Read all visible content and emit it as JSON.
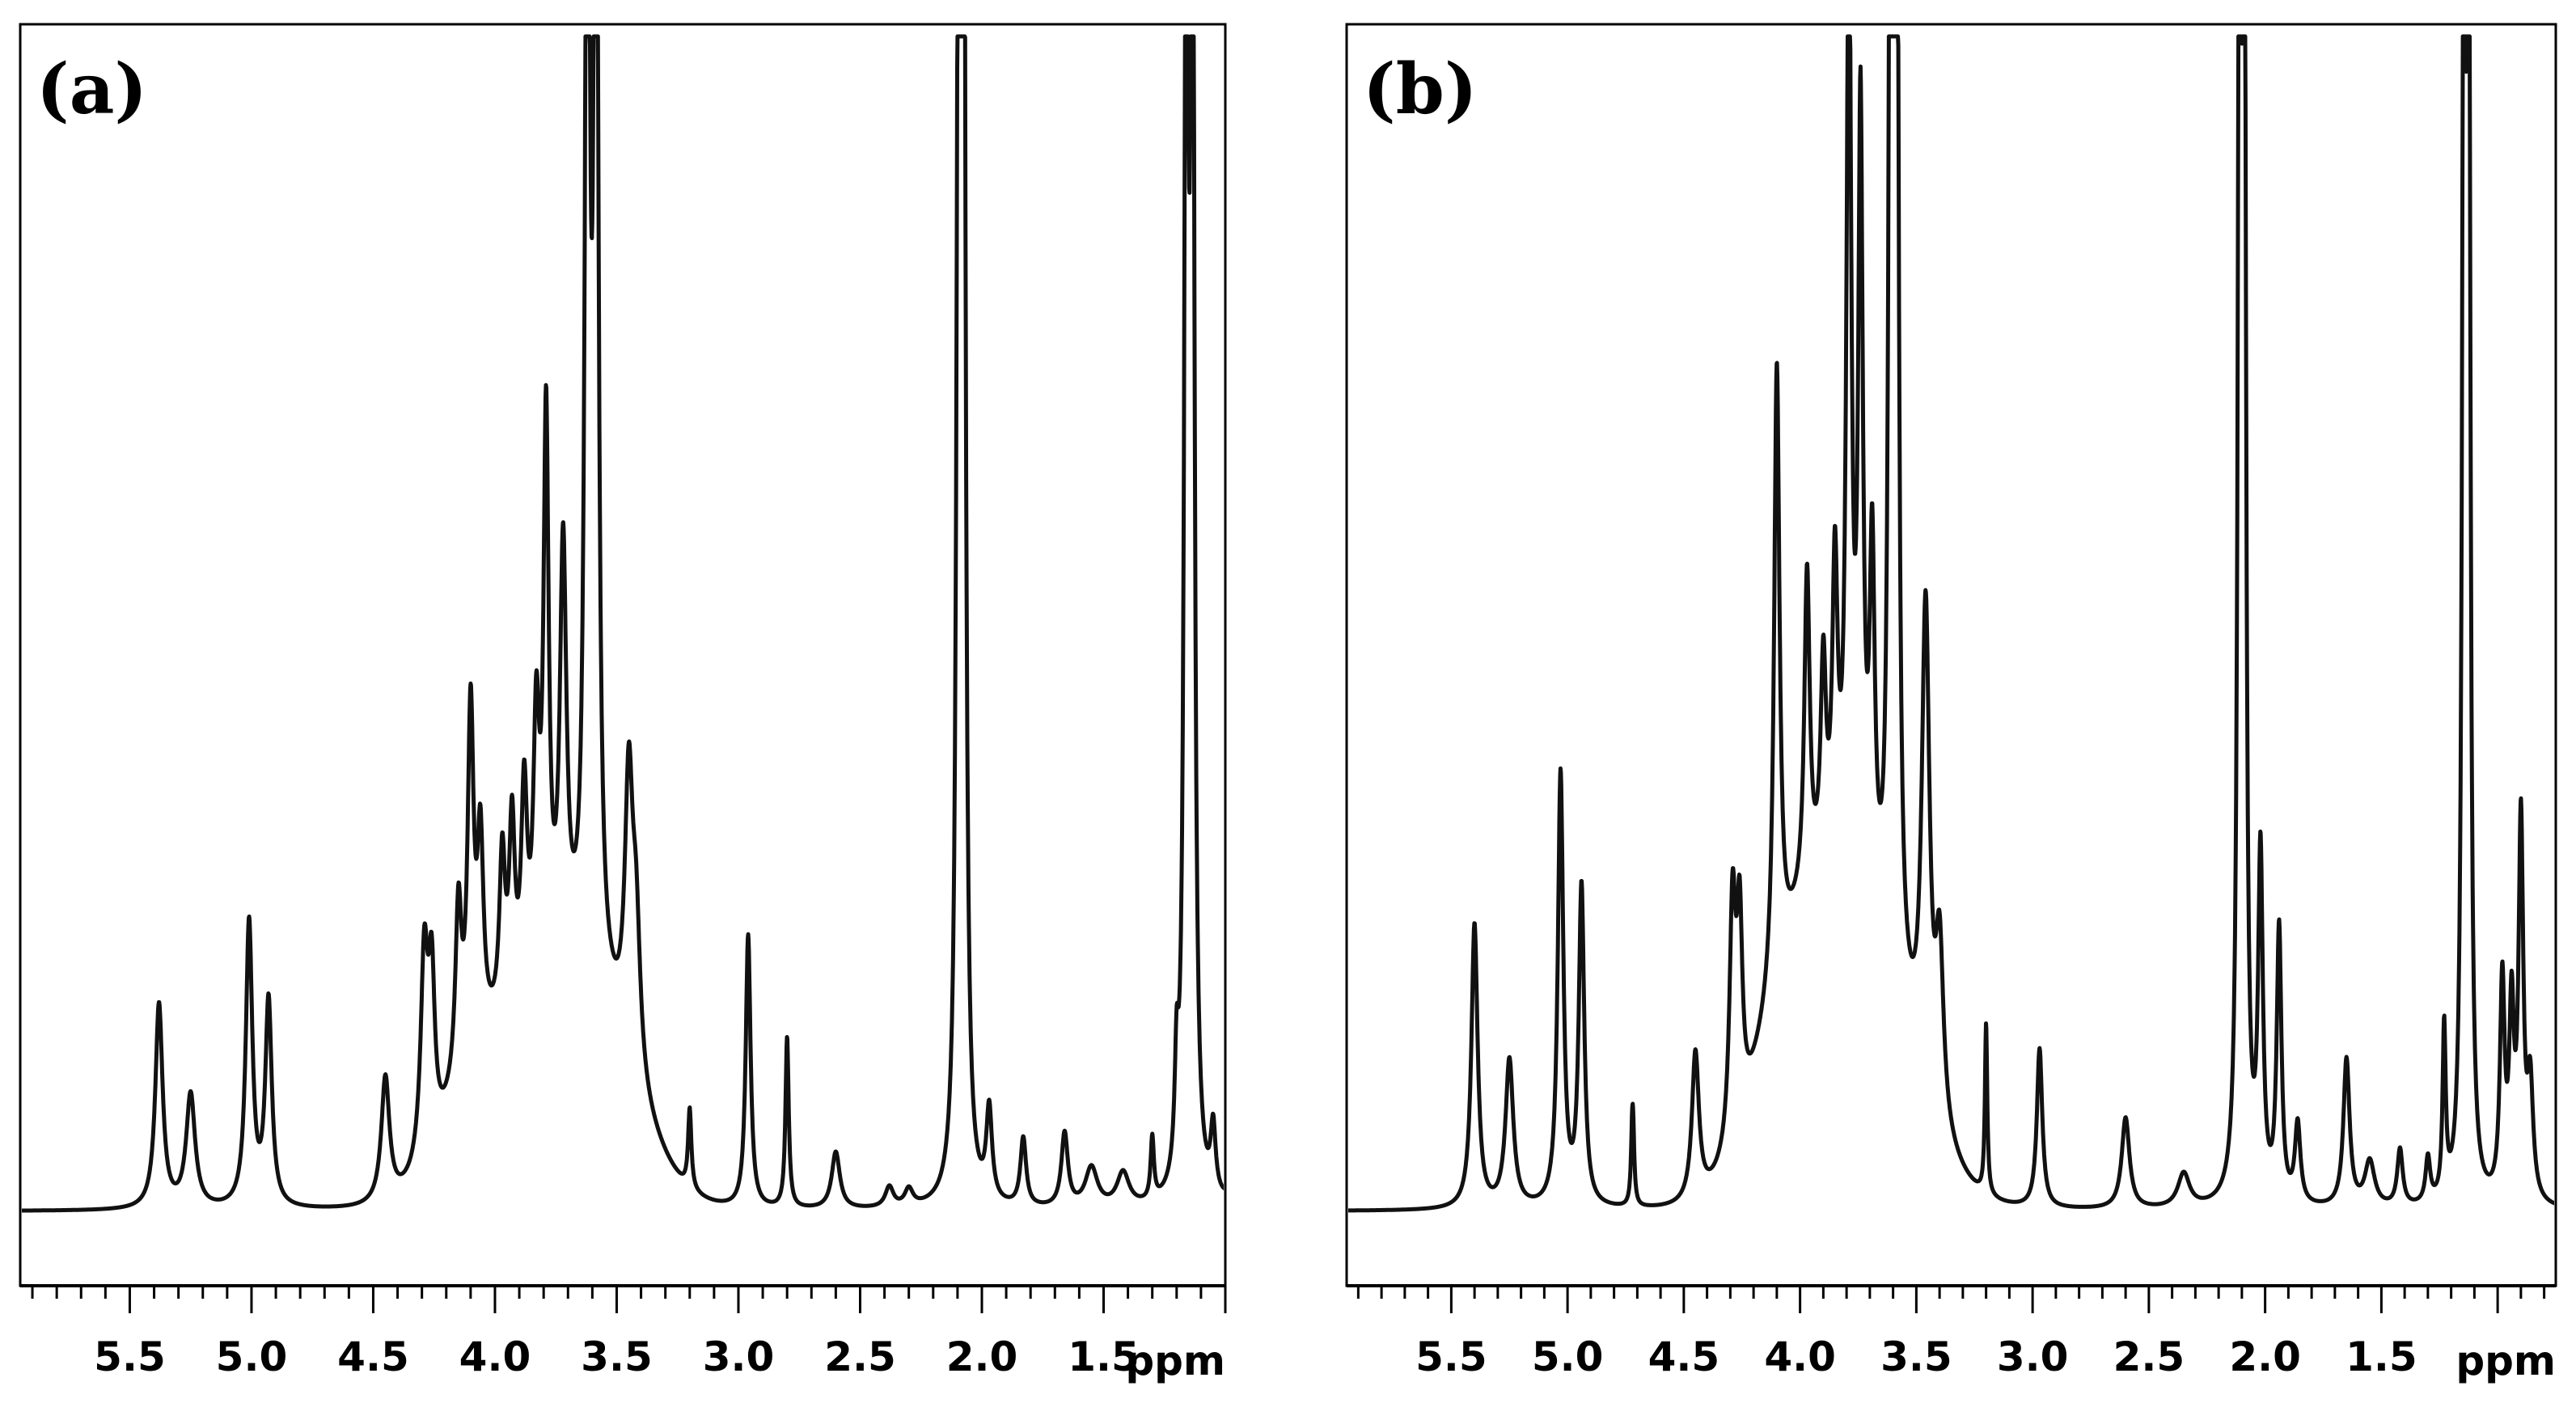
{
  "colors": {
    "line": "#111111",
    "frame": "#000000",
    "background": "#ffffff"
  },
  "chart_data": [
    {
      "type": "line",
      "panel_label": "(a)",
      "xlabel": "ppm",
      "xlim": [
        5.95,
        1.0
      ],
      "x_reversed": true,
      "ylim": [
        0,
        100
      ],
      "grid": false,
      "xticks": [
        5.5,
        5.0,
        4.5,
        4.0,
        3.5,
        3.0,
        2.5,
        2.0,
        1.5
      ],
      "xtick_labels": [
        "5.5",
        "5.0",
        "4.5",
        "4.0",
        "3.5",
        "3.0",
        "2.5",
        "2.0",
        "1.5"
      ],
      "baseline": 1.2,
      "broad_humps": [
        {
          "ppm": 3.65,
          "height": 20,
          "width": 0.28
        },
        {
          "ppm": 4.05,
          "height": 11,
          "width": 0.22
        }
      ],
      "peaks": [
        {
          "ppm": 5.38,
          "height": 18,
          "width": 0.018
        },
        {
          "ppm": 5.25,
          "height": 10,
          "width": 0.022
        },
        {
          "ppm": 5.01,
          "height": 25,
          "width": 0.016
        },
        {
          "ppm": 4.93,
          "height": 18,
          "width": 0.016
        },
        {
          "ppm": 4.45,
          "height": 11,
          "width": 0.02
        },
        {
          "ppm": 4.29,
          "height": 18,
          "width": 0.018
        },
        {
          "ppm": 4.26,
          "height": 14,
          "width": 0.015
        },
        {
          "ppm": 4.15,
          "height": 15,
          "width": 0.015
        },
        {
          "ppm": 4.1,
          "height": 30,
          "width": 0.015
        },
        {
          "ppm": 4.06,
          "height": 17,
          "width": 0.015
        },
        {
          "ppm": 3.97,
          "height": 14,
          "width": 0.014
        },
        {
          "ppm": 3.93,
          "height": 16,
          "width": 0.014
        },
        {
          "ppm": 3.88,
          "height": 18,
          "width": 0.015
        },
        {
          "ppm": 3.83,
          "height": 22,
          "width": 0.015
        },
        {
          "ppm": 3.79,
          "height": 48,
          "width": 0.013
        },
        {
          "ppm": 3.72,
          "height": 36,
          "width": 0.016
        },
        {
          "ppm": 3.62,
          "height": 130,
          "width": 0.01
        },
        {
          "ppm": 3.585,
          "height": 130,
          "width": 0.01
        },
        {
          "ppm": 3.45,
          "height": 24,
          "width": 0.02
        },
        {
          "ppm": 3.42,
          "height": 12,
          "width": 0.02
        },
        {
          "ppm": 3.2,
          "height": 7,
          "width": 0.008
        },
        {
          "ppm": 2.96,
          "height": 24,
          "width": 0.012
        },
        {
          "ppm": 2.8,
          "height": 15,
          "width": 0.008
        },
        {
          "ppm": 2.6,
          "height": 5,
          "width": 0.02
        },
        {
          "ppm": 2.38,
          "height": 1.8,
          "width": 0.02
        },
        {
          "ppm": 2.3,
          "height": 1.5,
          "width": 0.02
        },
        {
          "ppm": 2.095,
          "height": 130,
          "width": 0.009
        },
        {
          "ppm": 2.075,
          "height": 130,
          "width": 0.009
        },
        {
          "ppm": 1.97,
          "height": 8,
          "width": 0.014
        },
        {
          "ppm": 1.83,
          "height": 6,
          "width": 0.014
        },
        {
          "ppm": 1.66,
          "height": 6.5,
          "width": 0.016
        },
        {
          "ppm": 1.55,
          "height": 3.5,
          "width": 0.03
        },
        {
          "ppm": 1.42,
          "height": 3,
          "width": 0.03
        },
        {
          "ppm": 1.3,
          "height": 5.5,
          "width": 0.008
        },
        {
          "ppm": 1.2,
          "height": 9,
          "width": 0.009
        },
        {
          "ppm": 1.16,
          "height": 130,
          "width": 0.009
        },
        {
          "ppm": 1.135,
          "height": 130,
          "width": 0.009
        },
        {
          "ppm": 1.05,
          "height": 6,
          "width": 0.012
        },
        {
          "ppm": 0.95,
          "height": 7,
          "width": 0.015
        }
      ]
    },
    {
      "type": "line",
      "panel_label": "(b)",
      "xlabel": "ppm",
      "xlim": [
        5.95,
        0.75
      ],
      "x_reversed": true,
      "ylim": [
        0,
        100
      ],
      "grid": false,
      "xticks": [
        5.5,
        5.0,
        4.5,
        4.0,
        3.5,
        3.0,
        2.5,
        2.0,
        1.5
      ],
      "xtick_labels": [
        "5.5",
        "5.0",
        "4.5",
        "4.0",
        "3.5",
        "3.0",
        "2.5",
        "2.0",
        "1.5"
      ],
      "baseline": 1.2,
      "broad_humps": [
        {
          "ppm": 3.75,
          "height": 24,
          "width": 0.3
        },
        {
          "ppm": 4.05,
          "height": 14,
          "width": 0.22
        }
      ],
      "peaks": [
        {
          "ppm": 5.4,
          "height": 25,
          "width": 0.016
        },
        {
          "ppm": 5.25,
          "height": 13,
          "width": 0.02
        },
        {
          "ppm": 5.03,
          "height": 38,
          "width": 0.014
        },
        {
          "ppm": 4.94,
          "height": 28,
          "width": 0.014
        },
        {
          "ppm": 4.72,
          "height": 14,
          "width": 0.006
        },
        {
          "ppm": 4.45,
          "height": 13,
          "width": 0.018
        },
        {
          "ppm": 4.29,
          "height": 21,
          "width": 0.016
        },
        {
          "ppm": 4.26,
          "height": 17,
          "width": 0.014
        },
        {
          "ppm": 4.1,
          "height": 54,
          "width": 0.014
        },
        {
          "ppm": 3.97,
          "height": 28,
          "width": 0.014
        },
        {
          "ppm": 3.9,
          "height": 18,
          "width": 0.014
        },
        {
          "ppm": 3.85,
          "height": 26,
          "width": 0.014
        },
        {
          "ppm": 3.79,
          "height": 85,
          "width": 0.012
        },
        {
          "ppm": 3.74,
          "height": 66,
          "width": 0.012
        },
        {
          "ppm": 3.69,
          "height": 30,
          "width": 0.013
        },
        {
          "ppm": 3.61,
          "height": 130,
          "width": 0.009
        },
        {
          "ppm": 3.585,
          "height": 130,
          "width": 0.009
        },
        {
          "ppm": 3.46,
          "height": 42,
          "width": 0.02
        },
        {
          "ppm": 3.4,
          "height": 15,
          "width": 0.02
        },
        {
          "ppm": 3.2,
          "height": 15,
          "width": 0.006
        },
        {
          "ppm": 2.97,
          "height": 14,
          "width": 0.014
        },
        {
          "ppm": 2.6,
          "height": 8,
          "width": 0.02
        },
        {
          "ppm": 2.35,
          "height": 3,
          "width": 0.03
        },
        {
          "ppm": 2.11,
          "height": 130,
          "width": 0.008
        },
        {
          "ppm": 2.09,
          "height": 130,
          "width": 0.008
        },
        {
          "ppm": 2.02,
          "height": 30,
          "width": 0.012
        },
        {
          "ppm": 1.94,
          "height": 24,
          "width": 0.012
        },
        {
          "ppm": 1.86,
          "height": 7,
          "width": 0.014
        },
        {
          "ppm": 1.65,
          "height": 13,
          "width": 0.016
        },
        {
          "ppm": 1.55,
          "height": 4,
          "width": 0.025
        },
        {
          "ppm": 1.42,
          "height": 5,
          "width": 0.014
        },
        {
          "ppm": 1.3,
          "height": 4,
          "width": 0.012
        },
        {
          "ppm": 1.23,
          "height": 15,
          "width": 0.008
        },
        {
          "ppm": 1.145,
          "height": 130,
          "width": 0.008
        },
        {
          "ppm": 1.125,
          "height": 130,
          "width": 0.008
        },
        {
          "ppm": 0.98,
          "height": 19,
          "width": 0.012
        },
        {
          "ppm": 0.94,
          "height": 16,
          "width": 0.012
        },
        {
          "ppm": 0.9,
          "height": 33,
          "width": 0.012
        },
        {
          "ppm": 0.86,
          "height": 10,
          "width": 0.015
        }
      ],
      "negative_peaks": [
        {
          "ppm": 4.72,
          "depth": 5
        },
        {
          "ppm": 3.58,
          "depth": 5
        },
        {
          "ppm": 1.13,
          "depth": 5
        }
      ]
    }
  ]
}
